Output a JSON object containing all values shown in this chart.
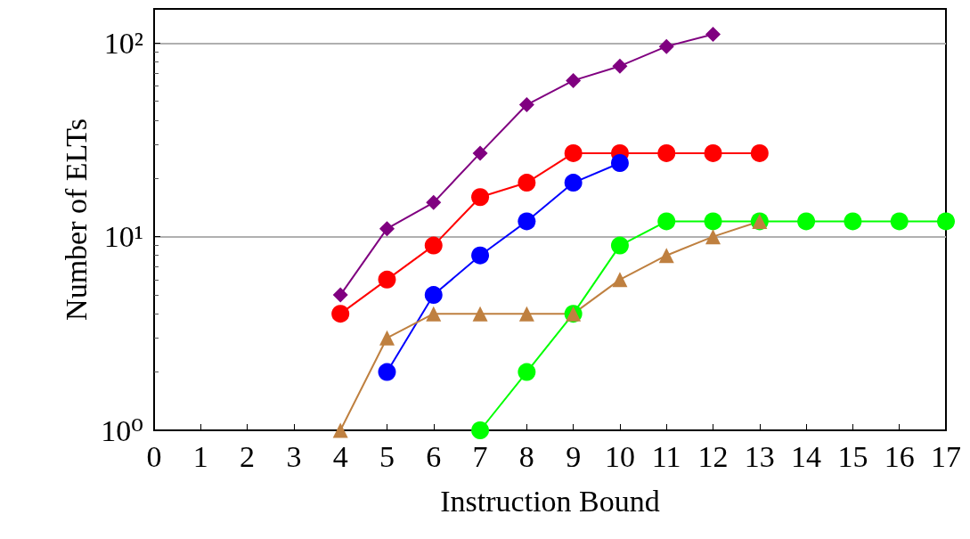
{
  "chart_data": {
    "type": "line",
    "xlabel": "Instruction Bound",
    "ylabel": "Number of ELTs",
    "log": "y",
    "grid": "y",
    "line_style": "solid",
    "xlim": [
      0,
      17
    ],
    "xticks": [
      0,
      1,
      2,
      3,
      4,
      5,
      6,
      7,
      8,
      9,
      10,
      11,
      12,
      13,
      14,
      15,
      16,
      17
    ],
    "ylim": [
      1,
      150
    ],
    "yticks": [
      {
        "value": 1,
        "label": "10⁰"
      },
      {
        "value": 10,
        "label": "10¹"
      },
      {
        "value": 100,
        "label": "10²"
      }
    ],
    "series": [
      {
        "color": "#800080",
        "marker": "diamond",
        "x": [
          4,
          5,
          6,
          7,
          8,
          9,
          10,
          11,
          12
        ],
        "values": [
          5,
          11,
          15,
          27,
          48,
          64,
          76,
          96,
          111
        ]
      },
      {
        "color": "#ff0000",
        "marker": "circle",
        "x": [
          4,
          5,
          6,
          7,
          8,
          9,
          10,
          11,
          12,
          13
        ],
        "values": [
          4,
          6,
          9,
          16,
          19,
          27,
          27,
          27,
          27,
          27
        ]
      },
      {
        "color": "#0000ff",
        "marker": "circle",
        "x": [
          5,
          6,
          7,
          8,
          9,
          10
        ],
        "values": [
          2,
          5,
          8,
          12,
          19,
          24
        ]
      },
      {
        "color": "#00ff00",
        "marker": "circle",
        "x": [
          7,
          8,
          9,
          10,
          11,
          12,
          13,
          14,
          15,
          16,
          17
        ],
        "values": [
          1,
          2,
          4,
          9,
          12,
          12,
          12,
          12,
          12,
          12,
          12
        ]
      },
      {
        "color": "#bf8040",
        "marker": "triangle",
        "x": [
          4,
          5,
          6,
          7,
          8,
          9,
          10,
          11,
          12,
          13
        ],
        "values": [
          1,
          3,
          4,
          4,
          4,
          4,
          6,
          8,
          10,
          12
        ]
      }
    ]
  }
}
